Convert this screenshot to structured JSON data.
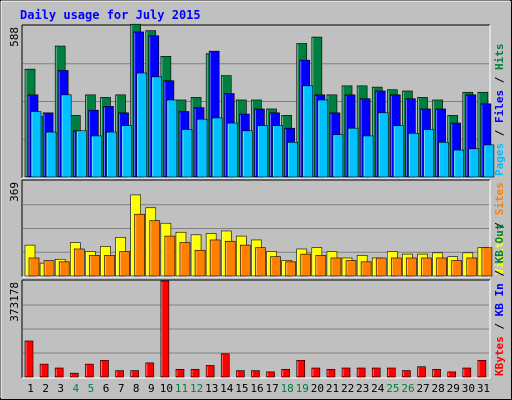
{
  "chart_data": {
    "type": "bar",
    "title": "Daily usage for July 2015",
    "categories": [
      "1",
      "2",
      "3",
      "4",
      "5",
      "6",
      "7",
      "8",
      "9",
      "10",
      "11",
      "12",
      "13",
      "14",
      "15",
      "16",
      "17",
      "18",
      "19",
      "20",
      "21",
      "22",
      "23",
      "24",
      "25",
      "26",
      "27",
      "28",
      "29",
      "30",
      "31"
    ],
    "weekend_days": [
      "4",
      "5",
      "11",
      "12",
      "18",
      "19",
      "25",
      "26"
    ],
    "panels": [
      {
        "max_label": "588",
        "ymax": 588,
        "side_labels": [
          {
            "text": "Pages",
            "color": "#00c0ff"
          },
          {
            "text": "Files",
            "color": "#0000ff"
          },
          {
            "text": "Hits",
            "color": "#008040"
          }
        ],
        "series": [
          {
            "name": "Hits",
            "color": "#008040",
            "values": [
              420,
              235,
              510,
              240,
              320,
              310,
              320,
              595,
              570,
              470,
              300,
              310,
              480,
              395,
              300,
              300,
              265,
              240,
              520,
              545,
              320,
              355,
              355,
              350,
              340,
              335,
              310,
              300,
              240,
              330,
              330
            ]
          },
          {
            "name": "Files",
            "color": "#0000ff",
            "values": [
              320,
              250,
              415,
              180,
              260,
              275,
              250,
              565,
              550,
              375,
              255,
              270,
              490,
              325,
              245,
              265,
              250,
              190,
              455,
              320,
              250,
              320,
              305,
              335,
              320,
              305,
              265,
              265,
              210,
              320,
              285
            ]
          },
          {
            "name": "Pages",
            "color": "#00c0ff",
            "values": [
              255,
              175,
              320,
              180,
              160,
              175,
              200,
              405,
              390,
              300,
              185,
              225,
              230,
              210,
              180,
              200,
              200,
              135,
              355,
              300,
              165,
              190,
              160,
              250,
              200,
              170,
              185,
              135,
              105,
              110,
              125
            ]
          }
        ]
      },
      {
        "max_label": "369",
        "ymax": 369,
        "side_labels": [
          {
            "text": "Visits",
            "color": "#ffff00"
          },
          {
            "text": "Sites",
            "color": "#ff8000"
          }
        ],
        "series": [
          {
            "name": "Visits",
            "color": "#ffff00",
            "values": [
              120,
              50,
              65,
              130,
              95,
              115,
              150,
              315,
              265,
              205,
              170,
              160,
              165,
              175,
              155,
              140,
              95,
              60,
              105,
              110,
              95,
              70,
              80,
              70,
              95,
              85,
              85,
              90,
              75,
              90,
              110
            ]
          },
          {
            "name": "Sites",
            "color": "#ff8000",
            "values": [
              70,
              60,
              55,
              105,
              80,
              80,
              95,
              240,
              215,
              155,
              130,
              100,
              140,
              135,
              120,
              110,
              75,
              55,
              85,
              80,
              70,
              60,
              55,
              70,
              70,
              70,
              70,
              70,
              60,
              70,
              110
            ]
          }
        ]
      },
      {
        "max_label": "373178",
        "ymax": 373178,
        "side_labels": [
          {
            "text": "KBytes",
            "color": "#ff0000"
          },
          {
            "text": "KB In",
            "color": "#0000ff"
          },
          {
            "text": "KB Out",
            "color": "#008040"
          }
        ],
        "series": [
          {
            "name": "KBytes",
            "color": "#ff0000",
            "values": [
              140000,
              50000,
              35000,
              15000,
              50000,
              65000,
              25000,
              25000,
              55000,
              373178,
              30000,
              30000,
              45000,
              90000,
              25000,
              25000,
              20000,
              30000,
              65000,
              35000,
              30000,
              35000,
              35000,
              35000,
              35000,
              25000,
              40000,
              30000,
              20000,
              35000,
              65000
            ]
          }
        ]
      }
    ]
  }
}
